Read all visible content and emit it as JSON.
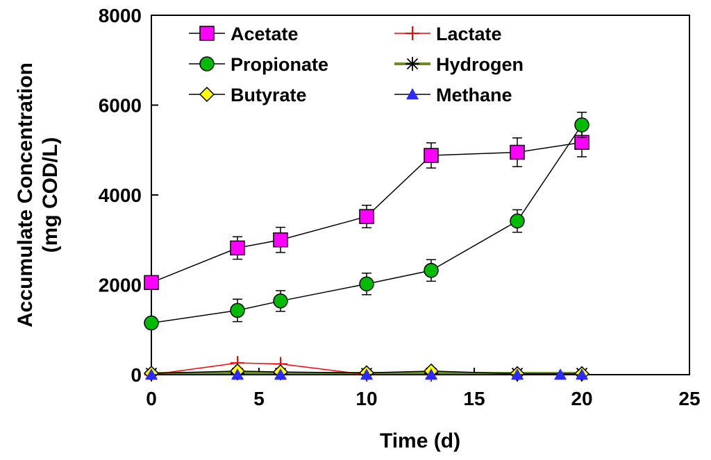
{
  "chart_data": {
    "type": "line",
    "title": "",
    "xlabel": "Time (d)",
    "ylabel_lines": [
      "Accumulate Concentration",
      "(mg COD/L)"
    ],
    "xlim": [
      0,
      25
    ],
    "ylim": [
      0,
      8000
    ],
    "xticks": [
      0,
      5,
      10,
      15,
      20,
      25
    ],
    "yticks": [
      0,
      2000,
      4000,
      6000,
      8000
    ],
    "grid": false,
    "legend_position": "top",
    "series": [
      {
        "name": "Acetate",
        "marker": "square",
        "color": "#ff00ff",
        "line_color": "#000000",
        "points": [
          {
            "x": 0,
            "y": 2050,
            "err": 0
          },
          {
            "x": 4,
            "y": 2820,
            "err": 250
          },
          {
            "x": 6,
            "y": 3000,
            "err": 280
          },
          {
            "x": 10,
            "y": 3520,
            "err": 250
          },
          {
            "x": 13,
            "y": 4880,
            "err": 280
          },
          {
            "x": 17,
            "y": 4950,
            "err": 320
          },
          {
            "x": 20,
            "y": 5170,
            "err": 320
          }
        ]
      },
      {
        "name": "Lactate",
        "marker": "plus",
        "color": "#ff0000",
        "line_color": "#ff0000",
        "points": [
          {
            "x": 0,
            "y": 0
          },
          {
            "x": 4,
            "y": 260
          },
          {
            "x": 6,
            "y": 240
          },
          {
            "x": 10,
            "y": 0
          },
          {
            "x": 13,
            "y": 0
          },
          {
            "x": 17,
            "y": 0
          },
          {
            "x": 20,
            "y": 0
          }
        ]
      },
      {
        "name": "Propionate",
        "marker": "circle",
        "color": "#00bb00",
        "line_color": "#000000",
        "points": [
          {
            "x": 0,
            "y": 1150,
            "err": 0
          },
          {
            "x": 4,
            "y": 1430,
            "err": 250
          },
          {
            "x": 6,
            "y": 1640,
            "err": 230
          },
          {
            "x": 10,
            "y": 2020,
            "err": 240
          },
          {
            "x": 13,
            "y": 2320,
            "err": 240
          },
          {
            "x": 17,
            "y": 3420,
            "err": 250
          },
          {
            "x": 20,
            "y": 5560,
            "err": 280
          }
        ]
      },
      {
        "name": "Hydrogen",
        "marker": "asterisk",
        "color": "#000000",
        "line_color": "#6b8e23",
        "points": [
          {
            "x": 0,
            "y": 30
          },
          {
            "x": 4,
            "y": 30
          },
          {
            "x": 6,
            "y": 30
          },
          {
            "x": 10,
            "y": 30
          },
          {
            "x": 13,
            "y": 30
          },
          {
            "x": 17,
            "y": 30
          },
          {
            "x": 20,
            "y": 30
          }
        ]
      },
      {
        "name": "Butyrate",
        "marker": "diamond",
        "color": "#ffff00",
        "line_color": "#000000",
        "points": [
          {
            "x": 0,
            "y": 30
          },
          {
            "x": 4,
            "y": 80
          },
          {
            "x": 6,
            "y": 60
          },
          {
            "x": 10,
            "y": 40
          },
          {
            "x": 13,
            "y": 80
          },
          {
            "x": 17,
            "y": 20
          },
          {
            "x": 20,
            "y": 20
          }
        ]
      },
      {
        "name": "Methane",
        "marker": "triangle",
        "color": "#2b2bff",
        "line_color": "#000000",
        "points": [
          {
            "x": 0,
            "y": 0
          },
          {
            "x": 4,
            "y": 0
          },
          {
            "x": 6,
            "y": 0
          },
          {
            "x": 10,
            "y": 0
          },
          {
            "x": 13,
            "y": 0
          },
          {
            "x": 17,
            "y": 0
          },
          {
            "x": 19,
            "y": 0
          },
          {
            "x": 20,
            "y": 0
          }
        ]
      }
    ]
  }
}
